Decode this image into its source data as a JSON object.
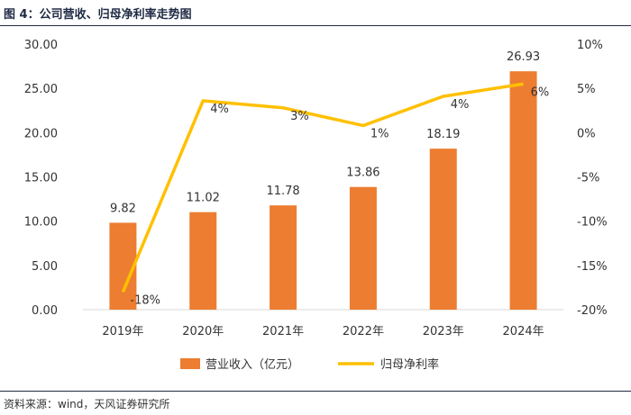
{
  "figure": {
    "title": "图 4：公司营收、归母净利率走势图",
    "source": "资料来源：wind，天风证券研究所"
  },
  "chart_data": {
    "type": "bar+line",
    "categories": [
      "2019年",
      "2020年",
      "2021年",
      "2022年",
      "2023年",
      "2024年"
    ],
    "series": [
      {
        "name": "营业收入（亿元）",
        "type": "bar",
        "axis": "left",
        "color": "#ED7D31",
        "values": [
          9.82,
          11.02,
          11.78,
          13.86,
          18.19,
          26.93
        ],
        "labels": [
          "9.82",
          "11.02",
          "11.78",
          "13.86",
          "18.19",
          "26.93"
        ]
      },
      {
        "name": "归母净利率",
        "type": "line",
        "axis": "right",
        "color": "#FFC000",
        "values": [
          -18,
          3.6,
          2.8,
          0.8,
          4.1,
          5.5
        ],
        "labels": [
          "-18%",
          "4%",
          "3%",
          "1%",
          "4%",
          "6%"
        ]
      }
    ],
    "y_left": {
      "min": 0,
      "max": 30,
      "ticks": [
        "0.00",
        "5.00",
        "10.00",
        "15.00",
        "20.00",
        "25.00",
        "30.00"
      ]
    },
    "y_right": {
      "min": -20,
      "max": 10,
      "ticks": [
        "-20%",
        "-15%",
        "-10%",
        "-5%",
        "0%",
        "5%",
        "10%"
      ]
    },
    "grid": false,
    "legend_position": "bottom"
  }
}
